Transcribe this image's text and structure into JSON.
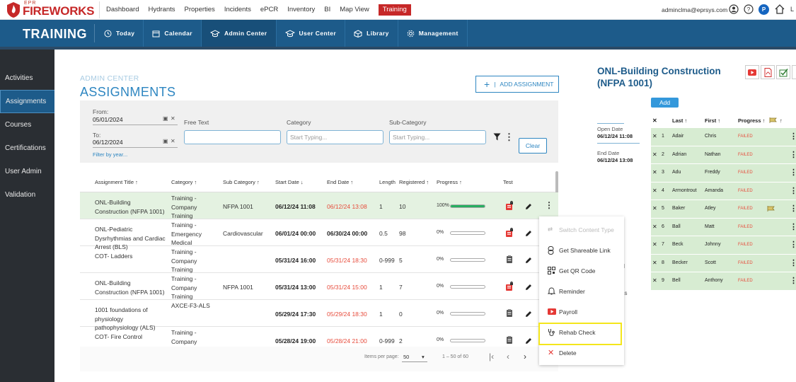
{
  "app": {
    "logo_small": "EPR",
    "logo_brand": "FIREWORKS",
    "nav": [
      "Dashboard",
      "Hydrants",
      "Properties",
      "Incidents",
      "ePCR",
      "Inventory",
      "BI",
      "Map View",
      "Training"
    ],
    "active_nav": "Training",
    "user_email": "adminclma@eprsys.com",
    "user_badge": "P",
    "overflow_text": "L",
    "brand_red": "#c62828",
    "module_blue": "#1d5b8a"
  },
  "module": {
    "title": "TRAINING",
    "tabs": [
      "Today",
      "Calendar",
      "Admin Center",
      "User Center",
      "Library",
      "Management"
    ],
    "active_tab": "Admin Center"
  },
  "sidebar": {
    "items": [
      "Activities",
      "Assignments",
      "Courses",
      "Certifications",
      "User Admin",
      "Validation"
    ],
    "active": "Assignments"
  },
  "page": {
    "pre_title": "ADMIN CENTER",
    "title": "ASSIGNMENTS",
    "add_button": "ADD ASSIGNMENT"
  },
  "filter": {
    "from_label": "From:",
    "from_value": "05/01/2024",
    "to_label": "To:",
    "to_value": "06/12/2024",
    "filter_by_year": "Filter by year...",
    "free_text_label": "Free Text",
    "free_text_value": "",
    "category_label": "Category",
    "category_placeholder": "Start Typing...",
    "subcategory_label": "Sub-Category",
    "subcategory_placeholder": "Start Typing...",
    "clear_label": "Clear"
  },
  "table": {
    "headers": {
      "title": "Assignment Title",
      "category": "Category",
      "subcategory": "Sub Category",
      "start": "Start Date",
      "end": "End Date",
      "length": "Length",
      "registered": "Registered",
      "progress": "Progress",
      "test": "Test"
    },
    "rows": [
      {
        "title": "ONL-Building Construction (NFPA 1001)",
        "category": "Training - Company Training",
        "subcategory": "NFPA 1001",
        "start": "06/12/24 11:08",
        "end": "06/12/24 13:08",
        "end_overdue": true,
        "length": "1",
        "registered": "10",
        "progress": "100%",
        "progress_value": 1.0,
        "test_icon": "exam-locked-icon"
      },
      {
        "title": "ONL-Pediatric Dysrhythmias and Cardiac Arrest (BLS)",
        "category": "Training - Emergency Medical",
        "subcategory": "Cardiovascular",
        "start": "06/01/24 00:00",
        "end": "06/30/24 00:00",
        "end_overdue": false,
        "length": "0.5",
        "registered": "98",
        "progress": "0%",
        "progress_value": 0.0,
        "test_icon": "exam-locked-icon"
      },
      {
        "title": "COT- Ladders",
        "category": "Training - Company Training",
        "subcategory": "",
        "start": "05/31/24 16:00",
        "end": "05/31/24 18:30",
        "end_overdue": true,
        "length": "0-999",
        "registered": "5",
        "progress": "0%",
        "progress_value": 0.0,
        "test_icon": "clipboard-icon"
      },
      {
        "title": "ONL-Building Construction (NFPA 1001)",
        "category": "Training - Company Training",
        "subcategory": "NFPA 1001",
        "start": "05/31/24 13:00",
        "end": "05/31/24 15:00",
        "end_overdue": true,
        "length": "1",
        "registered": "7",
        "progress": "0%",
        "progress_value": 0.0,
        "test_icon": "exam-locked-icon"
      },
      {
        "title": "1001 foundations of physiology pathophysiology (ALS)",
        "category": "AXCE-F3-ALS",
        "subcategory": "",
        "start": "05/29/24 17:30",
        "end": "05/29/24 18:30",
        "end_overdue": true,
        "length": "1",
        "registered": "0",
        "progress": "0%",
        "progress_value": 0.0,
        "test_icon": "clipboard-icon"
      },
      {
        "title": "COT- Fire Control",
        "category": "Training - Company",
        "subcategory": "",
        "start": "05/28/24 19:00",
        "end": "05/28/24 21:00",
        "end_overdue": true,
        "length": "0-999",
        "registered": "2",
        "progress": "0%",
        "progress_value": 0.0,
        "test_icon": "clipboard-icon"
      }
    ]
  },
  "pager": {
    "items_per_page_label": "Items per page:",
    "items_per_page": "50",
    "range": "1 – 50 of 60"
  },
  "context_menu": {
    "items": [
      {
        "label": "Switch Content Type",
        "icon": "swap-icon",
        "disabled": true
      },
      {
        "label": "Get Shareable Link",
        "icon": "link-icon",
        "disabled": false
      },
      {
        "label": "Get QR Code",
        "icon": "qr-code-icon",
        "disabled": false
      },
      {
        "label": "Reminder",
        "icon": "bell-icon",
        "disabled": false
      },
      {
        "label": "Payroll",
        "icon": "payroll-icon",
        "disabled": false
      },
      {
        "label": "Rehab Check",
        "icon": "stethoscope-icon",
        "disabled": false
      },
      {
        "label": "Delete",
        "icon": "delete-x-icon",
        "disabled": false
      }
    ],
    "highlighted": "Rehab Check"
  },
  "right_panel": {
    "title": "ONL-Building Construction (NFPA 1001)",
    "add_label": "Add",
    "open_date_label": "Open Date",
    "open_date": "06/12/24 11:08",
    "end_date_label": "End Date",
    "end_date": "06/12/24 13:08",
    "obscured_fragment_1": "ed",
    "obscured_fragment_2": "ess",
    "headers": {
      "last": "Last",
      "first": "First",
      "progress": "Progress"
    },
    "rows": [
      {
        "num": "1",
        "last": "Adair",
        "first": "Chris",
        "status": "FAILED",
        "flag": false
      },
      {
        "num": "2",
        "last": "Adrian",
        "first": "Nathan",
        "status": "FAILED",
        "flag": false
      },
      {
        "num": "3",
        "last": "Adu",
        "first": "Freddy",
        "status": "FAILED",
        "flag": false
      },
      {
        "num": "4",
        "last": "Armontrout",
        "first": "Amanda",
        "status": "FAILED",
        "flag": false
      },
      {
        "num": "5",
        "last": "Baker",
        "first": "Atley",
        "status": "FAILED",
        "flag": true
      },
      {
        "num": "6",
        "last": "Ball",
        "first": "Matt",
        "status": "FAILED",
        "flag": false
      },
      {
        "num": "7",
        "last": "Beck",
        "first": "Johnny",
        "status": "FAILED",
        "flag": false
      },
      {
        "num": "8",
        "last": "Becker",
        "first": "Scott",
        "status": "FAILED",
        "flag": false
      },
      {
        "num": "9",
        "last": "Bell",
        "first": "Anthony",
        "status": "FAILED",
        "flag": false
      }
    ]
  }
}
